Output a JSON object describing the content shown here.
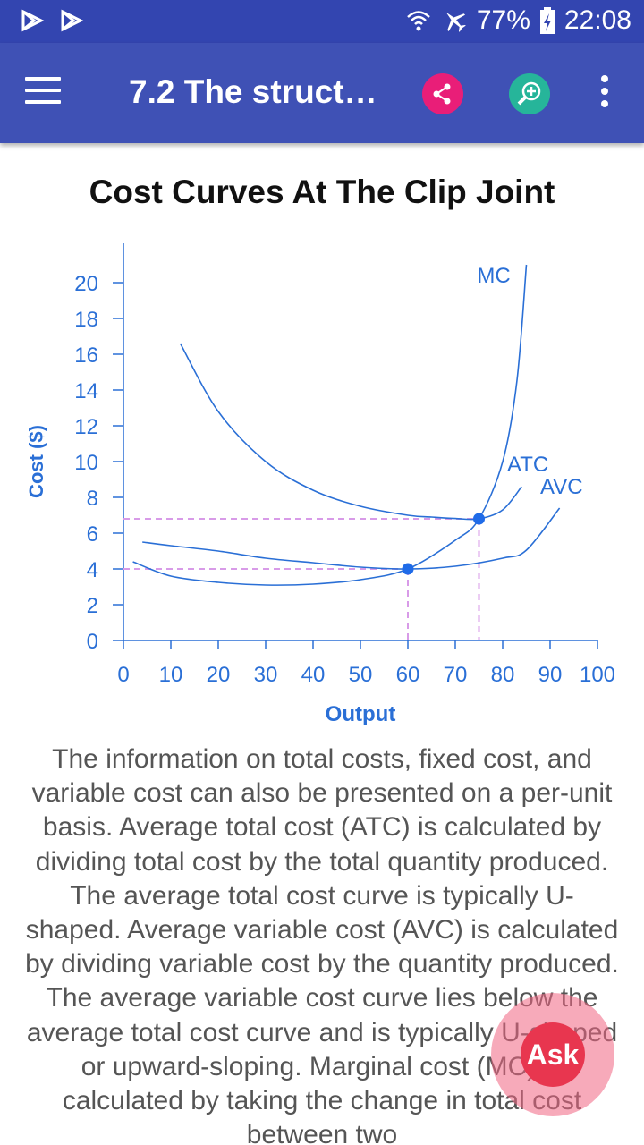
{
  "status_bar": {
    "battery": "77%",
    "time": "22:08",
    "icons": [
      "play-store-icon",
      "play-store-icon",
      "wifi-icon",
      "airplane-mode-icon",
      "battery-charging-icon"
    ]
  },
  "app_bar": {
    "title": "7.2 The struct…",
    "icons": [
      "menu-icon",
      "share-icon",
      "zoom-icon",
      "more-vert-icon"
    ],
    "colors": {
      "bar": "#3f51b5",
      "share": "#e91e78",
      "zoom": "#26b59a"
    }
  },
  "chart_data": {
    "type": "line",
    "title": "Cost Curves At The Clip Joint",
    "xlabel": "Output",
    "ylabel": "Cost ($)",
    "xlim": [
      0,
      100
    ],
    "ylim": [
      0,
      20
    ],
    "x_ticks": [
      0,
      10,
      20,
      30,
      40,
      50,
      60,
      70,
      80,
      90,
      100
    ],
    "y_ticks": [
      0,
      2,
      4,
      6,
      8,
      10,
      12,
      14,
      16,
      18,
      20
    ],
    "grid": false,
    "series": [
      {
        "name": "MC",
        "color": "#2a6fd6",
        "x": [
          2,
          10,
          20,
          30,
          40,
          50,
          60,
          70,
          75,
          80,
          83,
          85
        ],
        "y": [
          4.4,
          3.6,
          3.25,
          3.1,
          3.15,
          3.4,
          4.0,
          5.6,
          6.8,
          10,
          14.5,
          21
        ]
      },
      {
        "name": "ATC",
        "color": "#2a6fd6",
        "x": [
          12,
          20,
          30,
          40,
          50,
          60,
          65,
          70,
          75,
          80,
          84
        ],
        "y": [
          16.6,
          12.8,
          10.0,
          8.4,
          7.5,
          7.0,
          6.9,
          6.82,
          6.8,
          7.3,
          8.6
        ]
      },
      {
        "name": "AVC",
        "color": "#2a6fd6",
        "x": [
          4,
          10,
          20,
          30,
          40,
          50,
          60,
          70,
          80,
          85,
          92
        ],
        "y": [
          5.5,
          5.3,
          5.0,
          4.6,
          4.35,
          4.1,
          4.0,
          4.15,
          4.6,
          5.05,
          7.4
        ]
      }
    ],
    "points": [
      {
        "x": 60,
        "y": 4.0
      },
      {
        "x": 75,
        "y": 6.8
      }
    ],
    "guide_color": "#d89be8"
  },
  "article": {
    "text": "The information on total costs, fixed cost, and variable cost can also be presented on a per-unit basis. Average total cost (ATC) is calculated by dividing total cost by the total quantity produced. The average total cost curve is typically U-shaped. Average variable cost (AVC) is calculated by dividing variable cost by the quantity produced. The average variable cost curve lies below the average total cost curve and is typically U-shaped or upward-sloping. Marginal cost (MC) is calculated by taking the change in total cost between two"
  },
  "fab": {
    "label": "Ask"
  }
}
